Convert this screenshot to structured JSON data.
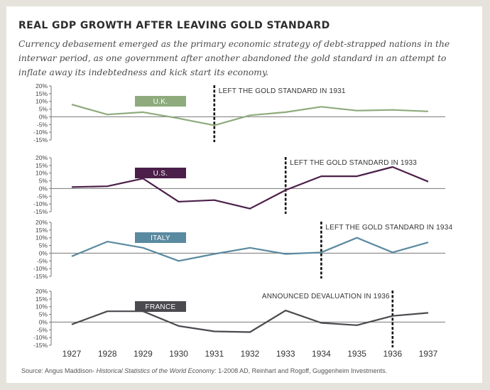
{
  "title": "REAL GDP GROWTH AFTER LEAVING GOLD STANDARD",
  "subtitle": "Currency debasement emerged as the primary economic strategy of debt-strapped nations in the interwar period, as one government after another abandoned the gold standard in an attempt to inflate away its indebtedness and kick start its economy.",
  "source": {
    "prefix": "Source: Angus Maddison- ",
    "italic": "Historical Statistics of the World Economy:",
    "suffix": "  1-2008 AD, Reinhart and Rogoff, Guggenheim Investments."
  },
  "chart_data": [
    {
      "type": "line",
      "series_name": "U.K.",
      "color": "#8fab7d",
      "label_color": "#8fab7d",
      "x": [
        1927,
        1928,
        1929,
        1930,
        1931,
        1932,
        1933,
        1934,
        1935,
        1936,
        1937
      ],
      "values": [
        8,
        1.5,
        3,
        -1,
        -5.5,
        1,
        3,
        6.5,
        4,
        4.5,
        3.5
      ],
      "y_ticks": [
        "20%",
        "15%",
        "10%",
        "5%",
        "0%",
        "-5%",
        "-10%",
        "-15%"
      ],
      "ylim": [
        -15,
        20
      ],
      "annotation": {
        "x": 1931,
        "text": "LEFT THE GOLD STANDARD IN 1931"
      }
    },
    {
      "type": "line",
      "series_name": "U.S.",
      "color": "#4b1f49",
      "label_color": "#4b1f49",
      "x": [
        1927,
        1928,
        1929,
        1930,
        1931,
        1932,
        1933,
        1934,
        1935,
        1936,
        1937
      ],
      "values": [
        1,
        1.5,
        6.5,
        -8.5,
        -7.5,
        -13,
        -1,
        8,
        8,
        14,
        4.5
      ],
      "y_ticks": [
        "20%",
        "15%",
        "10%",
        "5%",
        "0%",
        "-5%",
        "-10%",
        "-15%"
      ],
      "ylim": [
        -15,
        20
      ],
      "annotation": {
        "x": 1933,
        "text": "LEFT THE GOLD STANDARD IN 1933"
      }
    },
    {
      "type": "line",
      "series_name": "ITALY",
      "color": "#5a8aa0",
      "label_color": "#5a8aa0",
      "x": [
        1927,
        1928,
        1929,
        1930,
        1931,
        1932,
        1933,
        1934,
        1935,
        1936,
        1937
      ],
      "values": [
        -2,
        7.5,
        3.5,
        -5,
        -0.5,
        3.5,
        -0.5,
        0.5,
        10,
        0.5,
        7
      ],
      "y_ticks": [
        "20%",
        "15%",
        "10%",
        "5%",
        "0%",
        "-5%",
        "-10%",
        "-15%"
      ],
      "ylim": [
        -15,
        20
      ],
      "annotation": {
        "x": 1934,
        "text": "LEFT THE GOLD STANDARD IN 1934"
      }
    },
    {
      "type": "line",
      "series_name": "FRANCE",
      "color": "#4a4a4f",
      "label_color": "#4a4a4f",
      "x": [
        1927,
        1928,
        1929,
        1930,
        1931,
        1932,
        1933,
        1934,
        1935,
        1936,
        1937
      ],
      "values": [
        -1.5,
        7,
        7,
        -2.5,
        -6,
        -6.5,
        7.5,
        -0.5,
        -2,
        4,
        6
      ],
      "y_ticks": [
        "20%",
        "15%",
        "10%",
        "5%",
        "0%",
        "-5%",
        "-10%",
        "-15%"
      ],
      "ylim": [
        -15,
        20
      ],
      "annotation": {
        "x": 1936,
        "text": "ANNOUNCED DEVALUATION IN 1936"
      }
    }
  ],
  "x_tick_labels": [
    "1927",
    "1928",
    "1929",
    "1930",
    "1931",
    "1932",
    "1933",
    "1934",
    "1935",
    "1936",
    "1937"
  ]
}
